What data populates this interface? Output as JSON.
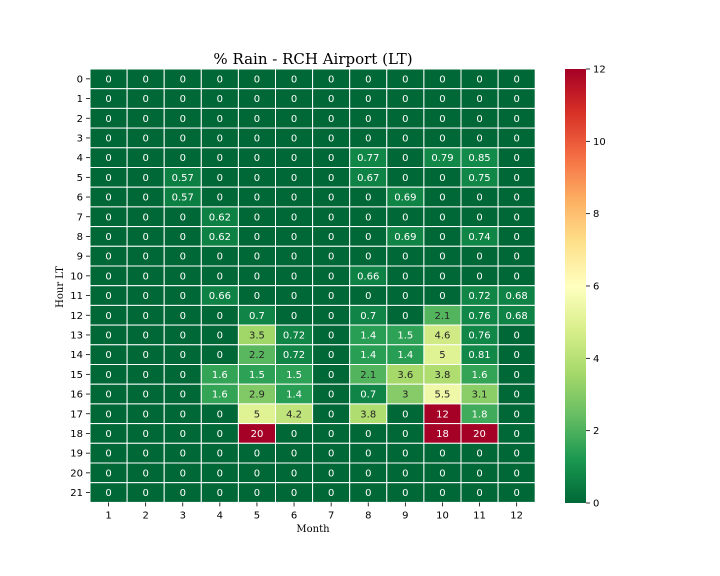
{
  "chart_data": {
    "type": "heatmap",
    "title": "% Rain - RCH Airport (LT)",
    "xlabel": "Month",
    "ylabel": "Hour LT",
    "x_categories": [
      "1",
      "2",
      "3",
      "4",
      "5",
      "6",
      "7",
      "8",
      "9",
      "10",
      "11",
      "12"
    ],
    "y_categories": [
      "0",
      "1",
      "2",
      "3",
      "4",
      "5",
      "6",
      "7",
      "8",
      "9",
      "10",
      "11",
      "12",
      "13",
      "14",
      "15",
      "16",
      "17",
      "18",
      "19",
      "20",
      "21"
    ],
    "values": [
      [
        0,
        0,
        0,
        0,
        0,
        0,
        0,
        0,
        0,
        0,
        0,
        0
      ],
      [
        0,
        0,
        0,
        0,
        0,
        0,
        0,
        0,
        0,
        0,
        0,
        0
      ],
      [
        0,
        0,
        0,
        0,
        0,
        0,
        0,
        0,
        0,
        0,
        0,
        0
      ],
      [
        0,
        0,
        0,
        0,
        0,
        0,
        0,
        0,
        0,
        0,
        0,
        0
      ],
      [
        0,
        0,
        0,
        0,
        0,
        0,
        0,
        0.77,
        0,
        0.79,
        0.85,
        0
      ],
      [
        0,
        0,
        0.57,
        0,
        0,
        0,
        0,
        0.67,
        0,
        0,
        0.75,
        0
      ],
      [
        0,
        0,
        0.57,
        0,
        0,
        0,
        0,
        0,
        0.69,
        0,
        0,
        0
      ],
      [
        0,
        0,
        0,
        0.62,
        0,
        0,
        0,
        0,
        0,
        0,
        0,
        0
      ],
      [
        0,
        0,
        0,
        0.62,
        0,
        0,
        0,
        0,
        0.69,
        0,
        0.74,
        0
      ],
      [
        0,
        0,
        0,
        0,
        0,
        0,
        0,
        0,
        0,
        0,
        0,
        0
      ],
      [
        0,
        0,
        0,
        0,
        0,
        0,
        0,
        0.66,
        0,
        0,
        0,
        0
      ],
      [
        0,
        0,
        0,
        0.66,
        0,
        0,
        0,
        0,
        0,
        0,
        0.72,
        0.68
      ],
      [
        0,
        0,
        0,
        0,
        0.7,
        0,
        0,
        0.7,
        0,
        2.1,
        0.76,
        0.68
      ],
      [
        0,
        0,
        0,
        0,
        3.5,
        0.72,
        0,
        1.4,
        1.5,
        4.6,
        0.76,
        0
      ],
      [
        0,
        0,
        0,
        0,
        2.2,
        0.72,
        0,
        1.4,
        1.4,
        5,
        0.81,
        0
      ],
      [
        0,
        0,
        0,
        1.6,
        1.5,
        1.5,
        0,
        2.1,
        3.6,
        3.8,
        1.6,
        0
      ],
      [
        0,
        0,
        0,
        1.6,
        2.9,
        1.4,
        0,
        0.7,
        3,
        5.5,
        3.1,
        0
      ],
      [
        0,
        0,
        0,
        0,
        5,
        4.2,
        0,
        3.8,
        0,
        12,
        1.8,
        0
      ],
      [
        0,
        0,
        0,
        0,
        20,
        0,
        0,
        0,
        0,
        18,
        20,
        0
      ],
      [
        0,
        0,
        0,
        0,
        0,
        0,
        0,
        0,
        0,
        0,
        0,
        0
      ],
      [
        0,
        0,
        0,
        0,
        0,
        0,
        0,
        0,
        0,
        0,
        0,
        0
      ],
      [
        0,
        0,
        0,
        0,
        0,
        0,
        0,
        0,
        0,
        0,
        0,
        0
      ]
    ],
    "vmin": 0,
    "vmax": 12,
    "colormap": "RdYlGn_r",
    "colorbar_ticks": [
      "0",
      "2",
      "4",
      "6",
      "8",
      "10",
      "12"
    ],
    "cell_border_color": "#ffffff"
  }
}
